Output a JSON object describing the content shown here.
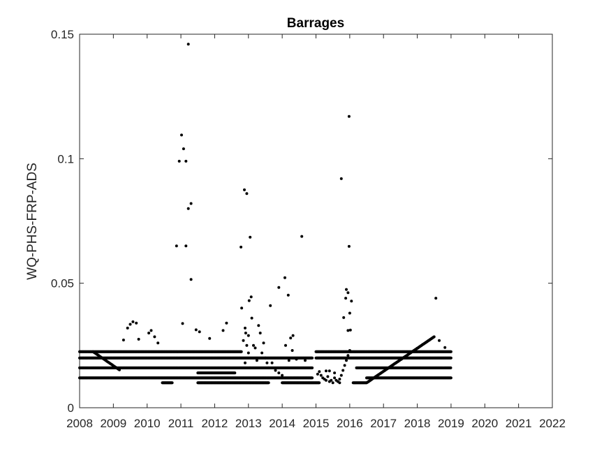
{
  "chart_data": {
    "type": "scatter",
    "title": "Barrages",
    "xlabel": "",
    "ylabel": "WQ-PHS-FRP-ADS",
    "xlim": [
      2008,
      2022
    ],
    "ylim": [
      0,
      0.15
    ],
    "xticks": [
      "2008",
      "2009",
      "2010",
      "2011",
      "2012",
      "2013",
      "2014",
      "2015",
      "2016",
      "2017",
      "2018",
      "2019",
      "2020",
      "2021",
      "2022"
    ],
    "yticks": [
      "0",
      "0.05",
      "0.1",
      "0.15"
    ],
    "grid": false,
    "legend": "none",
    "marker_color": "#000000",
    "series": [
      {
        "outliers": [
          {
            "x": 2010.87,
            "y": 0.065
          },
          {
            "x": 2010.95,
            "y": 0.099
          },
          {
            "x": 2011.02,
            "y": 0.1095
          },
          {
            "x": 2011.08,
            "y": 0.104
          },
          {
            "x": 2011.15,
            "y": 0.099
          },
          {
            "x": 2011.15,
            "y": 0.065
          },
          {
            "x": 2011.22,
            "y": 0.146
          },
          {
            "x": 2011.22,
            "y": 0.08
          },
          {
            "x": 2011.3,
            "y": 0.082
          },
          {
            "x": 2011.3,
            "y": 0.0515
          },
          {
            "x": 2011.05,
            "y": 0.0338
          },
          {
            "x": 2012.78,
            "y": 0.0645
          },
          {
            "x": 2012.88,
            "y": 0.0875
          },
          {
            "x": 2012.95,
            "y": 0.086
          },
          {
            "x": 2013.05,
            "y": 0.0685
          },
          {
            "x": 2013.02,
            "y": 0.043
          },
          {
            "x": 2013.08,
            "y": 0.0445
          },
          {
            "x": 2012.8,
            "y": 0.04
          },
          {
            "x": 2013.65,
            "y": 0.041
          },
          {
            "x": 2013.9,
            "y": 0.0483
          },
          {
            "x": 2014.08,
            "y": 0.0522
          },
          {
            "x": 2014.18,
            "y": 0.0452
          },
          {
            "x": 2014.58,
            "y": 0.0688
          },
          {
            "x": 2014.32,
            "y": 0.029
          },
          {
            "x": 2015.75,
            "y": 0.092
          },
          {
            "x": 2015.98,
            "y": 0.117
          },
          {
            "x": 2015.98,
            "y": 0.0648
          },
          {
            "x": 2015.9,
            "y": 0.0475
          },
          {
            "x": 2015.95,
            "y": 0.0462
          },
          {
            "x": 2016.05,
            "y": 0.0428
          },
          {
            "x": 2015.88,
            "y": 0.044
          },
          {
            "x": 2015.82,
            "y": 0.0362
          },
          {
            "x": 2016.0,
            "y": 0.038
          },
          {
            "x": 2015.95,
            "y": 0.031
          },
          {
            "x": 2016.02,
            "y": 0.0312
          },
          {
            "x": 2018.55,
            "y": 0.044
          },
          {
            "x": 2018.65,
            "y": 0.027
          },
          {
            "x": 2018.82,
            "y": 0.0242
          },
          {
            "x": 2009.42,
            "y": 0.032
          },
          {
            "x": 2009.5,
            "y": 0.0335
          },
          {
            "x": 2009.58,
            "y": 0.0345
          },
          {
            "x": 2009.68,
            "y": 0.034
          },
          {
            "x": 2009.3,
            "y": 0.0272
          },
          {
            "x": 2009.75,
            "y": 0.0275
          },
          {
            "x": 2010.05,
            "y": 0.03
          },
          {
            "x": 2010.12,
            "y": 0.031
          },
          {
            "x": 2010.22,
            "y": 0.0285
          },
          {
            "x": 2010.32,
            "y": 0.026
          },
          {
            "x": 2011.45,
            "y": 0.0313
          },
          {
            "x": 2011.55,
            "y": 0.0305
          },
          {
            "x": 2011.85,
            "y": 0.0278
          },
          {
            "x": 2012.25,
            "y": 0.031
          },
          {
            "x": 2012.35,
            "y": 0.034
          },
          {
            "x": 2013.0,
            "y": 0.029
          },
          {
            "x": 2012.92,
            "y": 0.03
          },
          {
            "x": 2014.42,
            "y": 0.0195
          },
          {
            "x": 2014.68,
            "y": 0.019
          }
        ]
      }
    ]
  }
}
